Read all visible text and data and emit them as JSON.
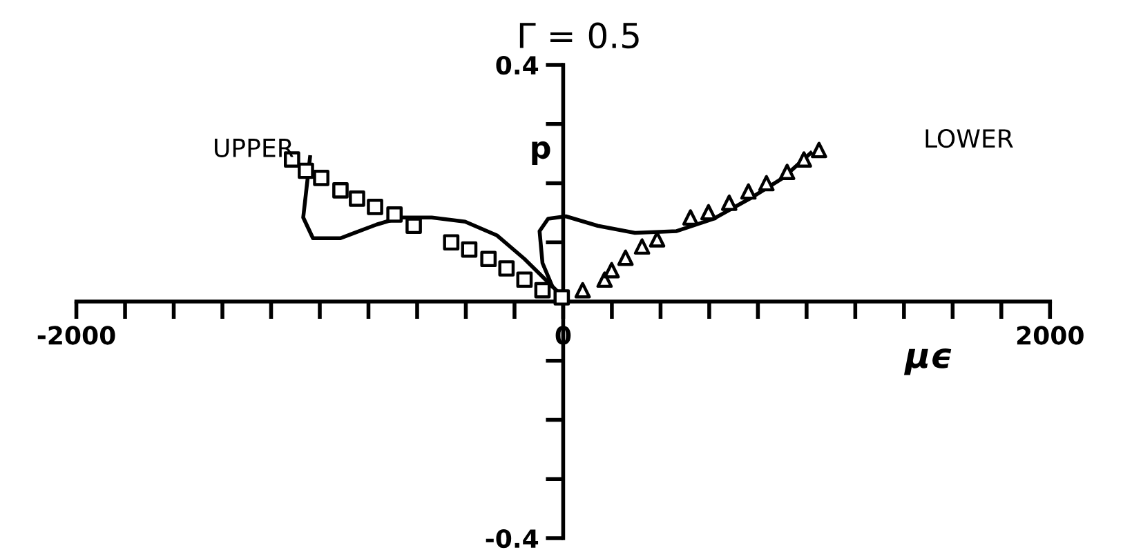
{
  "chart_data": {
    "type": "scatter",
    "title": "Γ = 0.5",
    "xlabel": "µϵ",
    "ylabel": "p",
    "annotations": [
      "UPPER",
      "LOWER"
    ],
    "xlim": [
      -2000,
      2000
    ],
    "ylim": [
      -0.4,
      0.4
    ],
    "xticks": [
      -2000,
      {
        "value": -1800,
        "label": null
      },
      {
        "value": -1600,
        "label": null
      },
      {
        "value": -1400,
        "label": null
      },
      {
        "value": -1200,
        "label": null
      },
      {
        "value": -1000,
        "label": null
      },
      {
        "value": -800,
        "label": null
      },
      {
        "value": -600,
        "label": null
      },
      {
        "value": -400,
        "label": null
      },
      {
        "value": -200,
        "label": null
      },
      0,
      {
        "value": 200,
        "label": null
      },
      {
        "value": 400,
        "label": null
      },
      {
        "value": 600,
        "label": null
      },
      {
        "value": 800,
        "label": null
      },
      {
        "value": 1000,
        "label": null
      },
      {
        "value": 1200,
        "label": null
      },
      {
        "value": 1400,
        "label": null
      },
      {
        "value": 1600,
        "label": null
      },
      {
        "value": 1800,
        "label": null
      },
      2000
    ],
    "yticks": [
      -0.4,
      {
        "value": -0.3,
        "label": null
      },
      {
        "value": -0.2,
        "label": null
      },
      {
        "value": -0.1,
        "label": null
      },
      {
        "value": 0.1,
        "label": null
      },
      {
        "value": 0.2,
        "label": null
      },
      {
        "value": 0.3,
        "label": null
      },
      0.4
    ],
    "grid": false,
    "series": [
      {
        "marker": "square",
        "color": "#000000",
        "x": [
          -1114,
          -1057,
          -994,
          -915,
          -847,
          -773,
          -693,
          -614,
          -460,
          -386,
          -307,
          -233,
          -159,
          -85,
          -6
        ],
        "values": [
          0.24,
          0.221,
          0.209,
          0.188,
          0.174,
          0.16,
          0.147,
          0.128,
          0.1,
          0.088,
          0.072,
          0.056,
          0.037,
          0.019,
          0.007
        ]
      },
      {
        "marker": "triangle",
        "color": "#000000",
        "x": [
          80,
          170,
          199,
          256,
          324,
          386,
          523,
          597,
          682,
          761,
          835,
          920,
          989,
          1051
        ],
        "values": [
          0.019,
          0.037,
          0.053,
          0.074,
          0.093,
          0.105,
          0.142,
          0.151,
          0.167,
          0.186,
          0.2,
          0.219,
          0.24,
          0.256
        ]
      },
      {
        "type": "line",
        "line_style": "solid",
        "color": "#000000",
        "x": [
          -1040,
          -1068,
          -1028,
          -915,
          -767,
          -670,
          -540,
          -403,
          -273,
          -159,
          -85,
          -28
        ],
        "values": [
          0.244,
          0.142,
          0.107,
          0.107,
          0.13,
          0.142,
          0.142,
          0.135,
          0.112,
          0.072,
          0.042,
          0.019
        ]
      },
      {
        "type": "line",
        "line_style": "solid",
        "color": "#000000",
        "x": [
          -45,
          -85,
          -97,
          -62,
          11,
          142,
          295,
          466,
          619,
          767,
          903,
          1017
        ],
        "values": [
          0.026,
          0.065,
          0.119,
          0.14,
          0.144,
          0.128,
          0.116,
          0.119,
          0.14,
          0.174,
          0.209,
          0.251
        ]
      }
    ]
  }
}
